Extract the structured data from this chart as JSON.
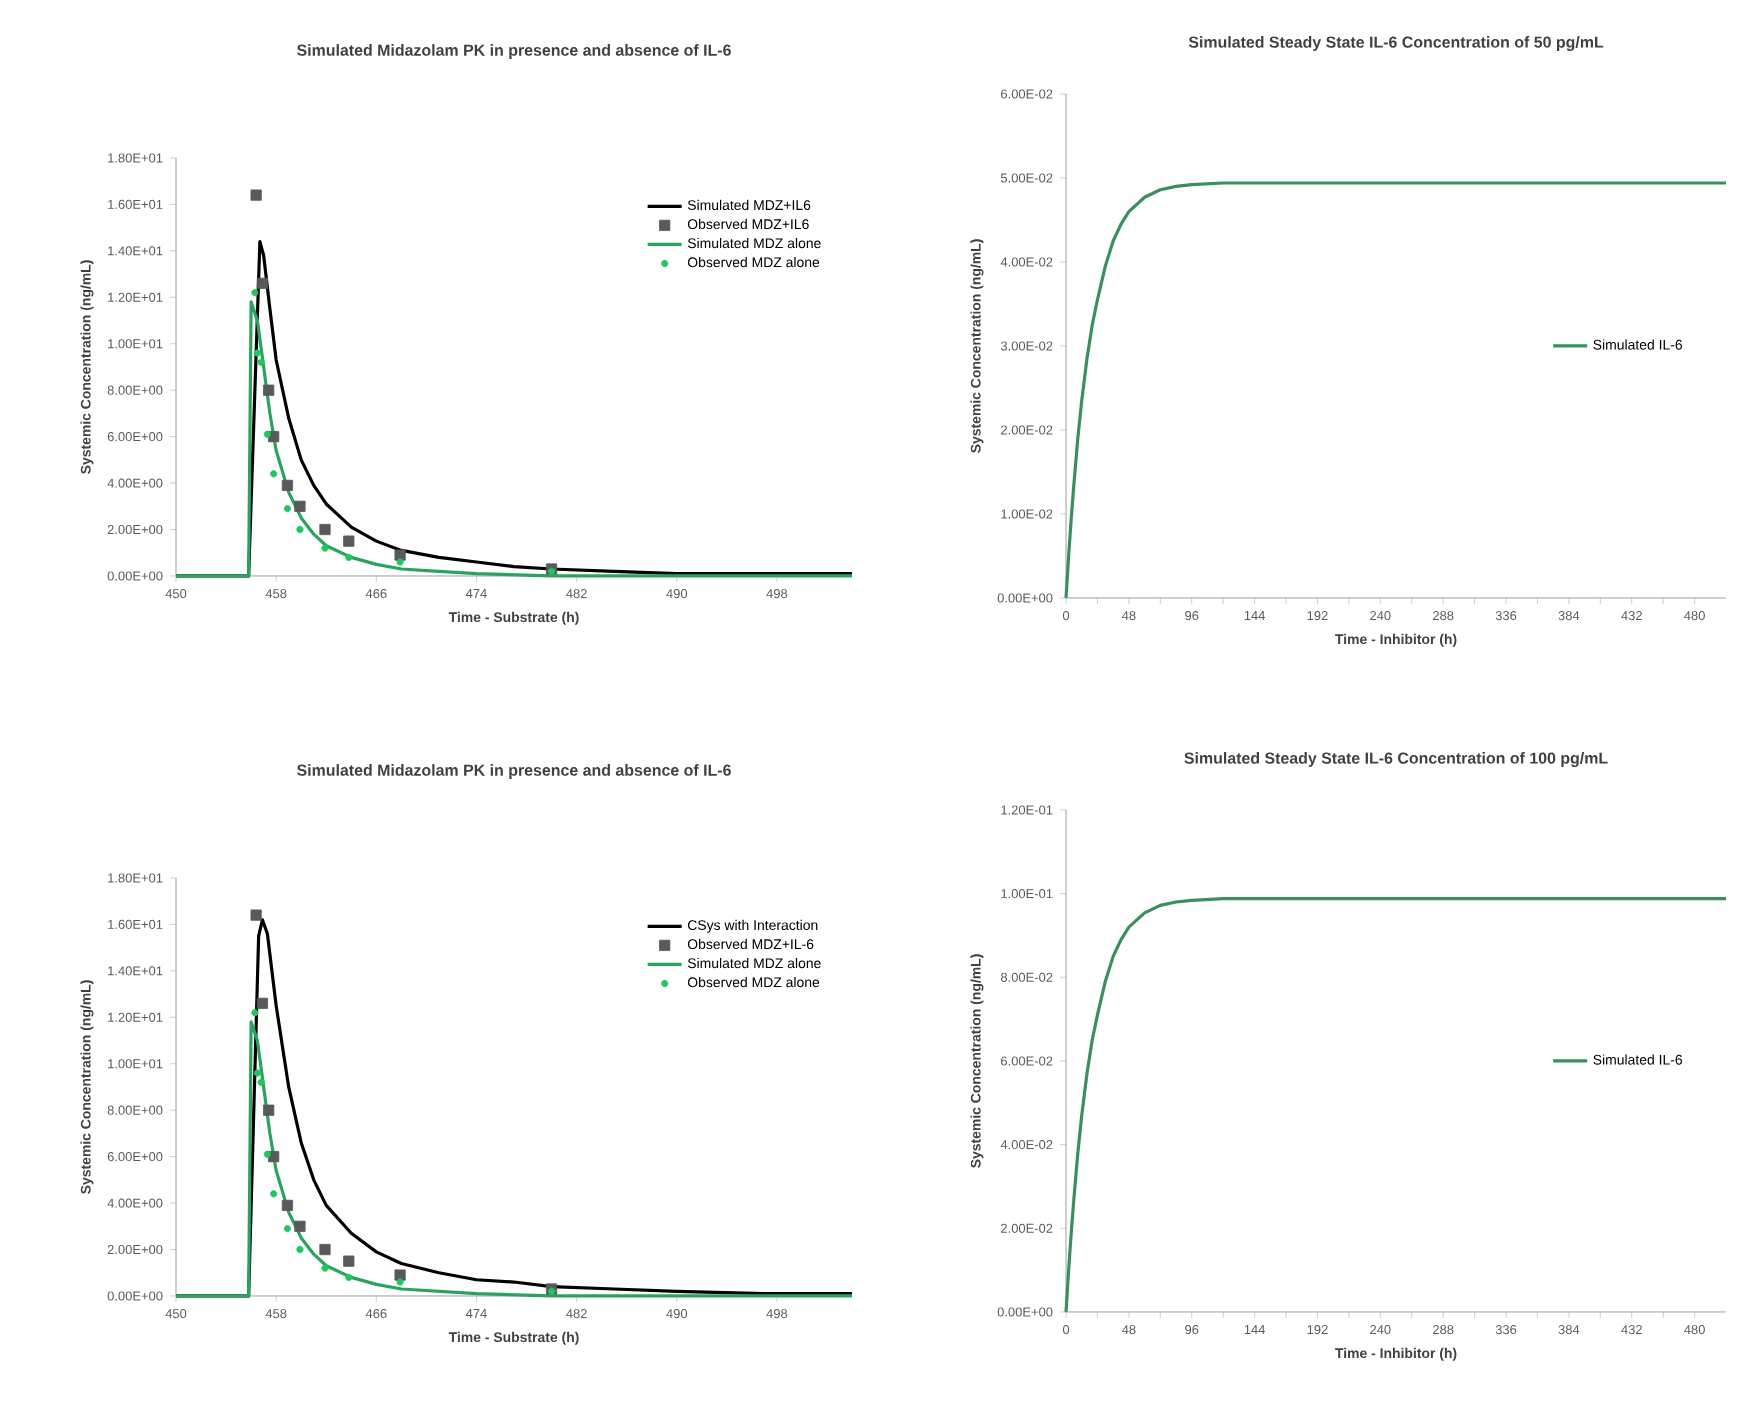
{
  "chart_data": [
    {
      "type": "line",
      "title": "Simulated Midazolam PK in presence and absence of  IL-6",
      "xlabel": "Time - Substrate (h)",
      "ylabel": "Systemic Concentration (ng/mL)",
      "xlim": [
        450,
        504
      ],
      "xticks": [
        450,
        458,
        466,
        474,
        482,
        490,
        498
      ],
      "ylim": [
        0,
        18
      ],
      "yticks": [
        {
          "value": 0,
          "label": "0.00E+00"
        },
        {
          "value": 2,
          "label": "2.00E+00"
        },
        {
          "value": 4,
          "label": "4.00E+00"
        },
        {
          "value": 6,
          "label": "6.00E+00"
        },
        {
          "value": 8,
          "label": "8.00E+00"
        },
        {
          "value": 10,
          "label": "1.00E+01"
        },
        {
          "value": 12,
          "label": "1.20E+01"
        },
        {
          "value": 14,
          "label": "1.40E+01"
        },
        {
          "value": 16,
          "label": "1.60E+01"
        },
        {
          "value": 18,
          "label": "1.80E+01"
        }
      ],
      "legend": "top right",
      "series": [
        {
          "name": "Simulated MDZ+IL6",
          "color": "#000000",
          "x": [
            450,
            455.8,
            456.7,
            457,
            457.5,
            458,
            459,
            460,
            461,
            462,
            464,
            466,
            468,
            471,
            474,
            477,
            480,
            485,
            490,
            497,
            504
          ],
          "values": [
            0,
            0,
            14.4,
            13.8,
            11.5,
            9.3,
            6.8,
            5.0,
            3.9,
            3.1,
            2.1,
            1.5,
            1.1,
            0.8,
            0.6,
            0.4,
            0.3,
            0.2,
            0.1,
            0.1,
            0.1
          ]
        },
        {
          "name": "Observed MDZ+IL6",
          "type": "scatter",
          "marker": "square",
          "color": "#595959",
          "x": [
            456.4,
            456.9,
            457.4,
            457.8,
            458.9,
            459.9,
            461.9,
            463.8,
            467.9,
            480
          ],
          "values": [
            16.4,
            12.6,
            8.0,
            6.0,
            3.9,
            3.0,
            2.0,
            1.5,
            0.9,
            0.3
          ]
        },
        {
          "name": "Simulated MDZ alone",
          "color": "#2ca25f",
          "x": [
            450,
            455.8,
            456,
            456.5,
            457,
            457.5,
            458,
            459,
            460,
            461,
            462,
            464,
            466,
            468,
            471,
            474,
            480,
            490,
            504
          ],
          "values": [
            0,
            0,
            11.8,
            11.0,
            9.0,
            7.0,
            5.4,
            3.6,
            2.5,
            1.8,
            1.3,
            0.8,
            0.5,
            0.3,
            0.2,
            0.1,
            0,
            0,
            0
          ]
        },
        {
          "name": "Observed MDZ alone",
          "type": "scatter",
          "marker": "circle",
          "color": "#22c55e",
          "x": [
            456.3,
            456.5,
            456.8,
            457.3,
            457.8,
            458.9,
            459.9,
            461.9,
            463.8,
            467.9,
            480
          ],
          "values": [
            12.2,
            9.6,
            9.2,
            6.1,
            4.4,
            2.9,
            2.0,
            1.2,
            0.8,
            0.6,
            0.2
          ]
        }
      ]
    },
    {
      "type": "line",
      "title": "Simulated Steady State IL-6 Concentration  of 50 pg/mL",
      "xlabel": "Time - Inhibitor (h)",
      "ylabel": "Systemic Concentration (ng/mL)",
      "xlim": [
        0,
        504
      ],
      "xticks": [
        0,
        {
          "value": 24,
          "label": null
        },
        48,
        {
          "value": 72,
          "label": null
        },
        96,
        {
          "value": 120,
          "label": null
        },
        144,
        {
          "value": 168,
          "label": null
        },
        192,
        {
          "value": 216,
          "label": null
        },
        240,
        {
          "value": 264,
          "label": null
        },
        288,
        {
          "value": 312,
          "label": null
        },
        336,
        {
          "value": 360,
          "label": null
        },
        384,
        {
          "value": 408,
          "label": null
        },
        432,
        {
          "value": 456,
          "label": null
        },
        480
      ],
      "ylim": [
        0,
        0.06
      ],
      "yticks": [
        {
          "value": 0,
          "label": "0.00E+00"
        },
        {
          "value": 0.01,
          "label": "1.00E-02"
        },
        {
          "value": 0.02,
          "label": "2.00E-02"
        },
        {
          "value": 0.03,
          "label": "3.00E-02"
        },
        {
          "value": 0.04,
          "label": "4.00E-02"
        },
        {
          "value": 0.05,
          "label": "5.00E-02"
        },
        {
          "value": 0.06,
          "label": "6.00E-02"
        }
      ],
      "legend": "right",
      "series": [
        {
          "name": "Simulated IL-6",
          "color": "#3a8f5c",
          "x": [
            0,
            2,
            4,
            6,
            9,
            12,
            16,
            20,
            24,
            30,
            36,
            42,
            48,
            60,
            72,
            84,
            96,
            120,
            144,
            192,
            504
          ],
          "values": [
            0,
            0.005,
            0.0095,
            0.0135,
            0.019,
            0.0235,
            0.0285,
            0.0325,
            0.0355,
            0.0395,
            0.0425,
            0.0445,
            0.046,
            0.0477,
            0.0486,
            0.049,
            0.0492,
            0.0494,
            0.0494,
            0.0494,
            0.0494
          ]
        }
      ]
    },
    {
      "type": "line",
      "title": "Simulated Midazolam PK in presence and absence of IL-6",
      "xlabel": "Time - Substrate (h)",
      "ylabel": "Systemic Concentration (ng/mL)",
      "xlim": [
        450,
        504
      ],
      "xticks": [
        450,
        458,
        466,
        474,
        482,
        490,
        498
      ],
      "ylim": [
        0,
        18
      ],
      "yticks": [
        {
          "value": 0,
          "label": "0.00E+00"
        },
        {
          "value": 2,
          "label": "2.00E+00"
        },
        {
          "value": 4,
          "label": "4.00E+00"
        },
        {
          "value": 6,
          "label": "6.00E+00"
        },
        {
          "value": 8,
          "label": "8.00E+00"
        },
        {
          "value": 10,
          "label": "1.00E+01"
        },
        {
          "value": 12,
          "label": "1.20E+01"
        },
        {
          "value": 14,
          "label": "1.40E+01"
        },
        {
          "value": 16,
          "label": "1.60E+01"
        },
        {
          "value": 18,
          "label": "1.80E+01"
        }
      ],
      "legend": "top right",
      "series": [
        {
          "name": "CSys with Interaction",
          "color": "#000000",
          "x": [
            450,
            455.8,
            456.6,
            456.9,
            457.3,
            458,
            459,
            460,
            461,
            462,
            464,
            466,
            468,
            471,
            474,
            477,
            480,
            485,
            490,
            497,
            504
          ],
          "values": [
            0,
            0,
            15.5,
            16.2,
            15.6,
            12.5,
            9.0,
            6.6,
            5.0,
            3.9,
            2.7,
            1.9,
            1.4,
            1.0,
            0.7,
            0.6,
            0.4,
            0.3,
            0.2,
            0.1,
            0.1
          ]
        },
        {
          "name": "Observed MDZ+IL-6",
          "type": "scatter",
          "marker": "square",
          "color": "#595959",
          "x": [
            456.4,
            456.9,
            457.4,
            457.8,
            458.9,
            459.9,
            461.9,
            463.8,
            467.9,
            480
          ],
          "values": [
            16.4,
            12.6,
            8.0,
            6.0,
            3.9,
            3.0,
            2.0,
            1.5,
            0.9,
            0.3
          ]
        },
        {
          "name": "Simulated MDZ alone",
          "color": "#2ca25f",
          "x": [
            450,
            455.8,
            456,
            456.5,
            457,
            457.5,
            458,
            459,
            460,
            461,
            462,
            464,
            466,
            468,
            471,
            474,
            480,
            490,
            504
          ],
          "values": [
            0,
            0,
            11.8,
            11.0,
            9.0,
            7.0,
            5.4,
            3.6,
            2.5,
            1.8,
            1.3,
            0.8,
            0.5,
            0.3,
            0.2,
            0.1,
            0,
            0,
            0
          ]
        },
        {
          "name": "Observed MDZ alone",
          "type": "scatter",
          "marker": "circle",
          "color": "#22c55e",
          "x": [
            456.3,
            456.5,
            456.8,
            457.3,
            457.8,
            458.9,
            459.9,
            461.9,
            463.8,
            467.9,
            480
          ],
          "values": [
            12.2,
            9.6,
            9.2,
            6.1,
            4.4,
            2.9,
            2.0,
            1.2,
            0.8,
            0.6,
            0.2
          ]
        }
      ]
    },
    {
      "type": "line",
      "title": "Simulated Steady State IL-6 Concentration  of 100 pg/mL",
      "xlabel": "Time - Inhibitor (h)",
      "ylabel": "Systemic Concentration (ng/mL)",
      "xlim": [
        0,
        504
      ],
      "xticks": [
        0,
        {
          "value": 24,
          "label": null
        },
        48,
        {
          "value": 72,
          "label": null
        },
        96,
        {
          "value": 120,
          "label": null
        },
        144,
        {
          "value": 168,
          "label": null
        },
        192,
        {
          "value": 216,
          "label": null
        },
        240,
        {
          "value": 264,
          "label": null
        },
        288,
        {
          "value": 312,
          "label": null
        },
        336,
        {
          "value": 360,
          "label": null
        },
        384,
        {
          "value": 408,
          "label": null
        },
        432,
        {
          "value": 456,
          "label": null
        },
        480
      ],
      "ylim": [
        0,
        0.12
      ],
      "yticks": [
        {
          "value": 0,
          "label": "0.00E+00"
        },
        {
          "value": 0.02,
          "label": "2.00E-02"
        },
        {
          "value": 0.04,
          "label": "4.00E-02"
        },
        {
          "value": 0.06,
          "label": "6.00E-02"
        },
        {
          "value": 0.08,
          "label": "8.00E-02"
        },
        {
          "value": 0.1,
          "label": "1.00E-01"
        },
        {
          "value": 0.12,
          "label": "1.20E-01"
        }
      ],
      "legend": "right",
      "series": [
        {
          "name": "Simulated IL-6",
          "color": "#3a8f5c",
          "x": [
            0,
            2,
            4,
            6,
            9,
            12,
            16,
            20,
            24,
            30,
            36,
            42,
            48,
            60,
            72,
            84,
            96,
            120,
            144,
            192,
            504
          ],
          "values": [
            0,
            0.01,
            0.019,
            0.027,
            0.038,
            0.047,
            0.057,
            0.065,
            0.071,
            0.079,
            0.085,
            0.089,
            0.092,
            0.0954,
            0.0972,
            0.098,
            0.0984,
            0.0988,
            0.0988,
            0.0988,
            0.0988
          ]
        }
      ]
    }
  ]
}
